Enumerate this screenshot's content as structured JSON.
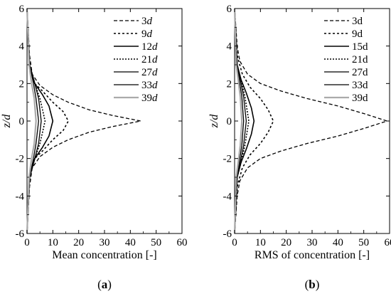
{
  "chart_data": [
    {
      "type": "line",
      "panel_label": "(a)",
      "panel_letter": "a",
      "xlabel": "Mean concentration [-]",
      "ylabel": "z/d",
      "xlim": [
        0,
        60
      ],
      "ylim": [
        -6,
        6
      ],
      "xticks": [
        0,
        10,
        20,
        30,
        40,
        50,
        60
      ],
      "yticks": [
        -6,
        -4,
        -2,
        0,
        2,
        4,
        6
      ],
      "grid": false,
      "legend_position": "top-right",
      "series": [
        {
          "name": "3d",
          "num": "3",
          "unit": "d",
          "color": "#000000",
          "dash": "5,3",
          "width": 1.3,
          "x": [
            0,
            1,
            2,
            5,
            10,
            16,
            24,
            33,
            44,
            33,
            24,
            16,
            10,
            5,
            2,
            1,
            0
          ],
          "y": [
            -6,
            -3.5,
            -2.5,
            -1.9,
            -1.4,
            -1.0,
            -0.6,
            -0.3,
            0,
            0.3,
            0.6,
            1.0,
            1.4,
            1.9,
            2.5,
            3.5,
            6
          ]
        },
        {
          "name": "9d",
          "num": "9",
          "unit": "d",
          "color": "#000000",
          "dash": "3,3",
          "width": 1.6,
          "x": [
            0,
            1,
            3,
            6,
            10,
            14,
            16,
            14,
            10,
            6,
            3,
            1,
            0
          ],
          "y": [
            -6,
            -3,
            -2,
            -1.6,
            -1.0,
            -0.5,
            0,
            0.5,
            1.0,
            1.6,
            2,
            3,
            6
          ]
        },
        {
          "name": "12d",
          "num": "12",
          "unit": "d",
          "color": "#000000",
          "dash": "",
          "width": 1.6,
          "x": [
            0,
            1,
            3,
            6,
            8.5,
            10,
            8.5,
            6,
            3,
            1,
            0
          ],
          "y": [
            -6,
            -3,
            -2,
            -1.4,
            -0.8,
            0,
            0.8,
            1.4,
            2,
            3,
            6
          ]
        },
        {
          "name": "21d",
          "num": "21",
          "unit": "d",
          "color": "#000000",
          "dash": "2,2",
          "width": 1.6,
          "x": [
            0,
            1,
            3,
            5,
            7,
            5,
            3,
            1,
            0
          ],
          "y": [
            -6,
            -3,
            -2,
            -1.2,
            0,
            1.2,
            2,
            3,
            6
          ]
        },
        {
          "name": "27d",
          "num": "27",
          "unit": "d",
          "color": "#000000",
          "dash": "",
          "width": 1.3,
          "x": [
            0,
            1,
            3,
            4.5,
            5.5,
            4.5,
            3,
            1,
            0
          ],
          "y": [
            -6,
            -3,
            -2,
            -1.2,
            0,
            1.2,
            2,
            3,
            6
          ]
        },
        {
          "name": "33d",
          "num": "33",
          "unit": "d",
          "color": "#000000",
          "dash": "",
          "width": 1.3,
          "x": [
            0,
            1,
            2.5,
            3.5,
            4.5,
            3.5,
            2.5,
            1,
            0
          ],
          "y": [
            -6,
            -3,
            -2,
            -1.2,
            0,
            1.2,
            2,
            3,
            6
          ]
        },
        {
          "name": "39d",
          "num": "39",
          "unit": "d",
          "color": "#aaaaaa",
          "dash": "",
          "width": 2.2,
          "x": [
            0,
            0.8,
            1.8,
            2.8,
            3.5,
            2.8,
            1.8,
            0.8,
            0
          ],
          "y": [
            -6,
            -3,
            -2,
            -1.2,
            0,
            1.2,
            2,
            3,
            6
          ]
        }
      ]
    },
    {
      "type": "line",
      "panel_label": "(b)",
      "panel_letter": "b",
      "xlabel": "RMS of concentration [-]",
      "ylabel": "z/d",
      "xlim": [
        0,
        60
      ],
      "ylim": [
        -6,
        6
      ],
      "xticks": [
        0,
        10,
        20,
        30,
        40,
        50,
        60
      ],
      "yticks": [
        -6,
        -4,
        -2,
        0,
        2,
        4,
        6
      ],
      "grid": false,
      "legend_position": "top-right",
      "series": [
        {
          "name": "3d",
          "num": "3",
          "unit": "d",
          "color": "#000000",
          "dash": "5,3",
          "width": 1.3,
          "x": [
            0,
            1,
            2,
            5,
            10,
            18,
            28,
            40,
            50,
            59,
            50,
            40,
            28,
            18,
            10,
            5,
            2,
            1,
            0
          ],
          "y": [
            -6,
            -4,
            -3.2,
            -2.5,
            -2.0,
            -1.6,
            -1.2,
            -0.8,
            -0.4,
            0,
            0.4,
            0.8,
            1.2,
            1.6,
            2.0,
            2.5,
            3.2,
            4,
            6
          ]
        },
        {
          "name": "9d",
          "num": "9",
          "unit": "d",
          "color": "#000000",
          "dash": "3,3",
          "width": 1.6,
          "x": [
            0,
            1,
            3,
            6,
            10,
            13,
            15,
            13,
            10,
            6,
            3,
            1,
            0
          ],
          "y": [
            -6,
            -3.5,
            -2.5,
            -1.8,
            -1.2,
            -0.6,
            0,
            0.6,
            1.2,
            1.8,
            2.5,
            3.5,
            6
          ]
        },
        {
          "name": "15d",
          "num": "15",
          "unit": "d",
          "color": "#000000",
          "dash": "",
          "width": 1.6,
          "x": [
            0,
            1,
            2.5,
            4.5,
            6.5,
            7.5,
            6.5,
            4.5,
            2.5,
            1,
            0
          ],
          "y": [
            -6,
            -3,
            -2.2,
            -1.5,
            -0.7,
            0,
            0.7,
            1.5,
            2.2,
            3,
            6
          ]
        },
        {
          "name": "21d",
          "num": "21",
          "unit": "d",
          "color": "#000000",
          "dash": "2,2",
          "width": 1.6,
          "x": [
            0,
            1,
            2.5,
            4,
            5.5,
            4,
            2.5,
            1,
            0
          ],
          "y": [
            -6,
            -3,
            -2.2,
            -1.3,
            0,
            1.3,
            2.2,
            3,
            6
          ]
        },
        {
          "name": "27d",
          "num": "27",
          "unit": "d",
          "color": "#000000",
          "dash": "",
          "width": 1.3,
          "x": [
            0,
            1,
            2.2,
            3.5,
            4.5,
            3.5,
            2.2,
            1,
            0
          ],
          "y": [
            -6,
            -3,
            -2.2,
            -1.3,
            0,
            1.3,
            2.2,
            3,
            6
          ]
        },
        {
          "name": "33d",
          "num": "33",
          "unit": "d",
          "color": "#000000",
          "dash": "",
          "width": 1.3,
          "x": [
            0,
            0.8,
            1.8,
            2.8,
            3.5,
            2.8,
            1.8,
            0.8,
            0
          ],
          "y": [
            -6,
            -3,
            -2.2,
            -1.3,
            0,
            1.3,
            2.2,
            3,
            6
          ]
        },
        {
          "name": "39d",
          "num": "39",
          "unit": "d",
          "color": "#aaaaaa",
          "dash": "",
          "width": 2.2,
          "x": [
            0,
            0.6,
            1.4,
            2.2,
            2.8,
            2.2,
            1.4,
            0.6,
            0
          ],
          "y": [
            -6,
            -3,
            -2.2,
            -1.3,
            0,
            1.3,
            2.2,
            3,
            6
          ]
        }
      ]
    }
  ]
}
